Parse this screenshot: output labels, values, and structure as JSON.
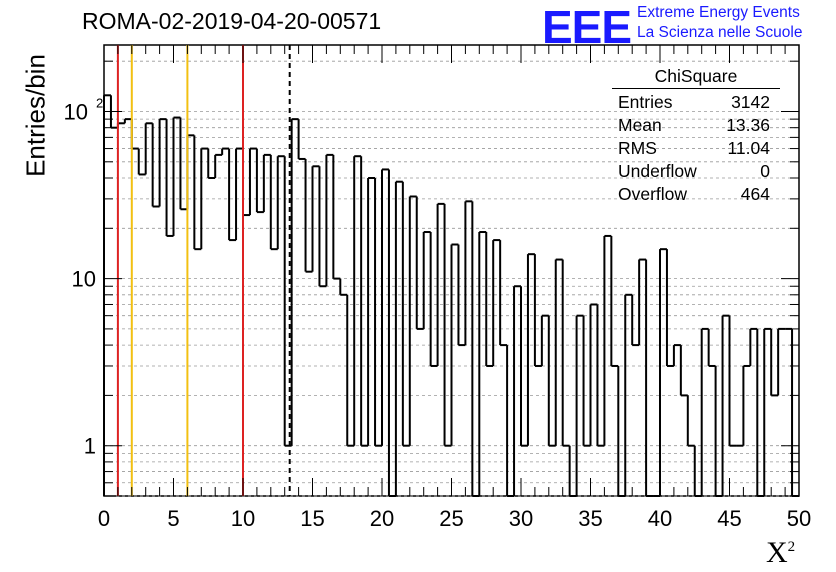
{
  "title": "ROMA-02-2019-04-20-00571",
  "logo": {
    "mark": "EEE",
    "line1": "Extreme Energy Events",
    "line2": "La Scienza nelle Scuole",
    "color": "#1a1aff"
  },
  "stats": {
    "name": "ChiSquare",
    "rows": [
      {
        "label": "Entries",
        "value": "3142"
      },
      {
        "label": "Mean",
        "value": "13.36"
      },
      {
        "label": "RMS",
        "value": "11.04"
      },
      {
        "label": "Underflow",
        "value": "0"
      },
      {
        "label": "Overflow",
        "value": "464"
      }
    ]
  },
  "chart_data": {
    "type": "histogram",
    "title": "ROMA-02-2019-04-20-00571",
    "xlabel": "X²",
    "ylabel": "Entries/bin",
    "xlim": [
      0,
      50
    ],
    "ylim": [
      0.5,
      250
    ],
    "yscale": "log",
    "grid": "horizontal, dashed",
    "bin_width": 0.5,
    "x_ticks": [
      "0",
      "5",
      "10",
      "15",
      "20",
      "25",
      "30",
      "35",
      "40",
      "45",
      "50"
    ],
    "y_ticks": [
      "1",
      "10",
      "10²"
    ],
    "counts": [
      125,
      80,
      85,
      90,
      60,
      42,
      85,
      27,
      90,
      18,
      92,
      26,
      72,
      15,
      60,
      40,
      55,
      60,
      17,
      60,
      24,
      60,
      25,
      55,
      15,
      54,
      1,
      90,
      52,
      11,
      47,
      9,
      55,
      10,
      8,
      1,
      54,
      1,
      40,
      1,
      45,
      0.5,
      38,
      1,
      31,
      5,
      19,
      3,
      28,
      1,
      16,
      4,
      29,
      0.5,
      19,
      3,
      17,
      4,
      0.5,
      9,
      1,
      14,
      3,
      6,
      1,
      13,
      1,
      0.5,
      6,
      1,
      7,
      1,
      18,
      3,
      0.5,
      8,
      4,
      13,
      0.5,
      0.5,
      15,
      3,
      4,
      2,
      1,
      0.5,
      5,
      3,
      0.5,
      6,
      1,
      1,
      3,
      5,
      0.5,
      5,
      2,
      5,
      5,
      0.5
    ],
    "lines": [
      {
        "x": 1,
        "color": "#dd2222",
        "style": "solid"
      },
      {
        "x": 2,
        "color": "#f2c011",
        "style": "solid"
      },
      {
        "x": 6,
        "color": "#f2c011",
        "style": "solid"
      },
      {
        "x": 10,
        "color": "#dd2222",
        "style": "solid"
      },
      {
        "x": 13.36,
        "color": "#000000",
        "style": "dashed"
      }
    ]
  }
}
